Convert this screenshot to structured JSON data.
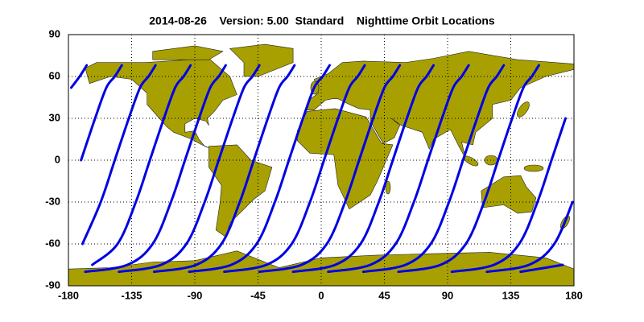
{
  "chart_data": {
    "type": "map",
    "title": "2014-08-26    Version: 5.00  Standard    Nighttime Orbit Locations",
    "xlim": [
      -180,
      180
    ],
    "xticks": [
      -180,
      -135,
      -90,
      -45,
      0,
      45,
      90,
      135,
      180
    ],
    "ylim": [
      -90,
      90
    ],
    "yticks": [
      90,
      60,
      30,
      0,
      -30,
      -60,
      -90
    ],
    "grid": true,
    "land_color": "#a8a000",
    "line_color": "#0000e6",
    "series": [
      {
        "x": [
          -167,
          -172,
          -178
        ],
        "y": [
          68,
          60,
          52
        ]
      },
      {
        "x": [
          174,
          164,
          154,
          141,
          123,
          93
        ],
        "y": [
          30,
          0,
          -30,
          -60,
          -75,
          -80
        ]
      },
      {
        "x": [
          -142,
          -147,
          -153,
          -161,
          -171
        ],
        "y": [
          68,
          60,
          52,
          30,
          0
        ]
      },
      {
        "x": [
          179,
          166,
          148,
          118
        ],
        "y": [
          -30,
          -60,
          -75,
          -80
        ]
      },
      {
        "x": [
          -118,
          -123,
          -129,
          -137,
          -147,
          -157,
          -170
        ],
        "y": [
          68,
          60,
          52,
          30,
          0,
          -30,
          -60
        ]
      },
      {
        "x": [
          172,
          142
        ],
        "y": [
          -75,
          -80
        ]
      },
      {
        "x": [
          -93,
          -98,
          -104,
          -112,
          -122,
          -132,
          -145,
          -163
        ],
        "y": [
          68,
          60,
          52,
          30,
          0,
          -30,
          -60,
          -75
        ]
      },
      {
        "x": [
          -68,
          -73,
          -79,
          -87,
          -97,
          -107,
          -120,
          -138,
          -168
        ],
        "y": [
          68,
          60,
          52,
          30,
          0,
          -30,
          -60,
          -75,
          -80
        ]
      },
      {
        "x": [
          -44,
          -49,
          -55,
          -63,
          -73,
          -83,
          -96,
          -114,
          -144
        ],
        "y": [
          68,
          60,
          52,
          30,
          0,
          -30,
          -60,
          -75,
          -80
        ]
      },
      {
        "x": [
          -19,
          -24,
          -30,
          -38,
          -48,
          -58,
          -71,
          -89,
          -119
        ],
        "y": [
          68,
          60,
          52,
          30,
          0,
          -30,
          -60,
          -75,
          -80
        ]
      },
      {
        "x": [
          6,
          1,
          -5,
          -13,
          -23,
          -33,
          -46,
          -64,
          -94
        ],
        "y": [
          68,
          60,
          52,
          30,
          0,
          -30,
          -60,
          -75,
          -80
        ]
      },
      {
        "x": [
          31,
          26,
          20,
          12,
          2,
          -8,
          -21,
          -39,
          -69
        ],
        "y": [
          68,
          60,
          52,
          30,
          0,
          -30,
          -60,
          -75,
          -80
        ]
      },
      {
        "x": [
          56,
          51,
          45,
          37,
          27,
          17,
          4,
          -14,
          -44
        ],
        "y": [
          68,
          60,
          52,
          30,
          0,
          -30,
          -60,
          -75,
          -80
        ]
      },
      {
        "x": [
          80,
          75,
          69,
          61,
          51,
          41,
          28,
          10,
          -20
        ],
        "y": [
          68,
          60,
          52,
          30,
          0,
          -30,
          -60,
          -75,
          -80
        ]
      },
      {
        "x": [
          105,
          100,
          94,
          86,
          76,
          66,
          53,
          35,
          5
        ],
        "y": [
          68,
          60,
          52,
          30,
          0,
          -30,
          -60,
          -75,
          -80
        ]
      },
      {
        "x": [
          130,
          125,
          119,
          111,
          101,
          91,
          78,
          60,
          30
        ],
        "y": [
          68,
          60,
          52,
          30,
          0,
          -30,
          -60,
          -75,
          -80
        ]
      },
      {
        "x": [
          155,
          150,
          144,
          136,
          126,
          116,
          103,
          85,
          55
        ],
        "y": [
          68,
          60,
          52,
          30,
          0,
          -30,
          -60,
          -75,
          -80
        ]
      }
    ]
  }
}
